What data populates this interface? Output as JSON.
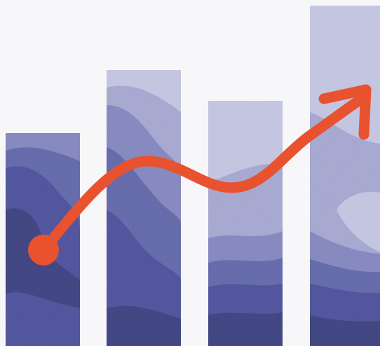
{
  "illustration": {
    "background": "#f7f7f9",
    "bar_count": 4,
    "bar_palette": {
      "light": "#c4c6e2",
      "mid_light": "#a6a8d2",
      "mid": "#8487c0",
      "mid_dark": "#6166ab",
      "dark": "#484d9c",
      "darkest": "#353a80"
    },
    "trend_arrow": {
      "color": "#e8522f",
      "direction": "upward"
    }
  }
}
